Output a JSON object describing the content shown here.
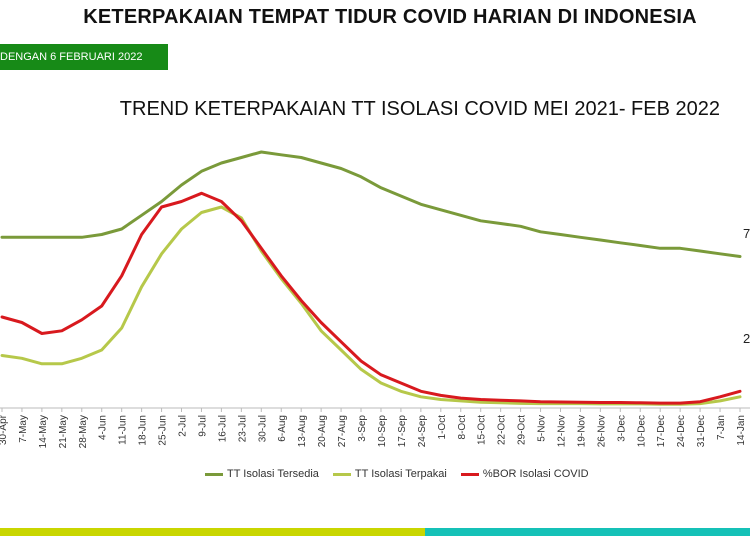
{
  "header": {
    "title": "KETERPAKAIAN TEMPAT TIDUR COVID HARIAN DI INDONESIA",
    "badge": "DENGAN  6 FEBRUARI 2022"
  },
  "side_labels": [
    "7",
    "2"
  ],
  "colors": {
    "tersedia": "#7a9a3a",
    "terpakai": "#b6c84a",
    "bor": "#d8191e",
    "grid": "#bbbbbb",
    "bar_left": "#c9d600",
    "bar_right": "#15c1b7"
  },
  "chart_data": {
    "type": "line",
    "title": "TREND KETERPAKAIAN TT ISOLASI COVID MEI 2021- FEB 2022",
    "xlabel": "",
    "ylabel": "",
    "grid": false,
    "legend": "bottom",
    "x": [
      "30-Apr",
      "7-May",
      "14-May",
      "21-May",
      "28-May",
      "4-Jun",
      "11-Jun",
      "18-Jun",
      "25-Jun",
      "2-Jul",
      "9-Jul",
      "16-Jul",
      "23-Jul",
      "30-Jul",
      "6-Aug",
      "13-Aug",
      "20-Aug",
      "27-Aug",
      "3-Sep",
      "10-Sep",
      "17-Sep",
      "24-Sep",
      "1-Oct",
      "8-Oct",
      "15-Oct",
      "22-Oct",
      "29-Oct",
      "5-Nov",
      "12-Nov",
      "19-Nov",
      "26-Nov",
      "3-Dec",
      "10-Dec",
      "17-Dec",
      "24-Dec",
      "31-Dec",
      "7-Jan",
      "14-Jan"
    ],
    "y_range": [
      0,
      100
    ],
    "series": [
      {
        "name": "TT Isolasi Tersedia",
        "color": "#7a9a3a",
        "values": [
          61,
          61,
          61,
          61,
          61,
          62,
          64,
          69,
          74,
          80,
          85,
          88,
          90,
          92,
          91,
          90,
          88,
          86,
          83,
          79,
          76,
          73,
          71,
          69,
          67,
          66,
          65,
          63,
          62,
          61,
          60,
          59,
          58,
          57,
          57,
          56,
          55,
          54
        ]
      },
      {
        "name": "TT Isolasi Terpakai",
        "color": "#b6c84a",
        "values": [
          18,
          17,
          15,
          15,
          17,
          20,
          28,
          43,
          55,
          64,
          70,
          72,
          68,
          56,
          46,
          37,
          27,
          20,
          13,
          8,
          5,
          3,
          2,
          1.5,
          1,
          0.8,
          0.6,
          0.5,
          0.5,
          0.5,
          0.4,
          0.4,
          0.4,
          0.3,
          0.3,
          0.5,
          1.5,
          3
        ]
      },
      {
        "name": "%BOR Isolasi COVID",
        "color": "#d8191e",
        "values": [
          32,
          30,
          26,
          27,
          31,
          36,
          47,
          62,
          72,
          74,
          77,
          74,
          67,
          57,
          47,
          38,
          30,
          23,
          16,
          11,
          8,
          5,
          3.5,
          2.5,
          2,
          1.7,
          1.5,
          1.2,
          1.1,
          1,
          0.9,
          0.9,
          0.8,
          0.7,
          0.7,
          1.2,
          3,
          5
        ]
      }
    ]
  }
}
